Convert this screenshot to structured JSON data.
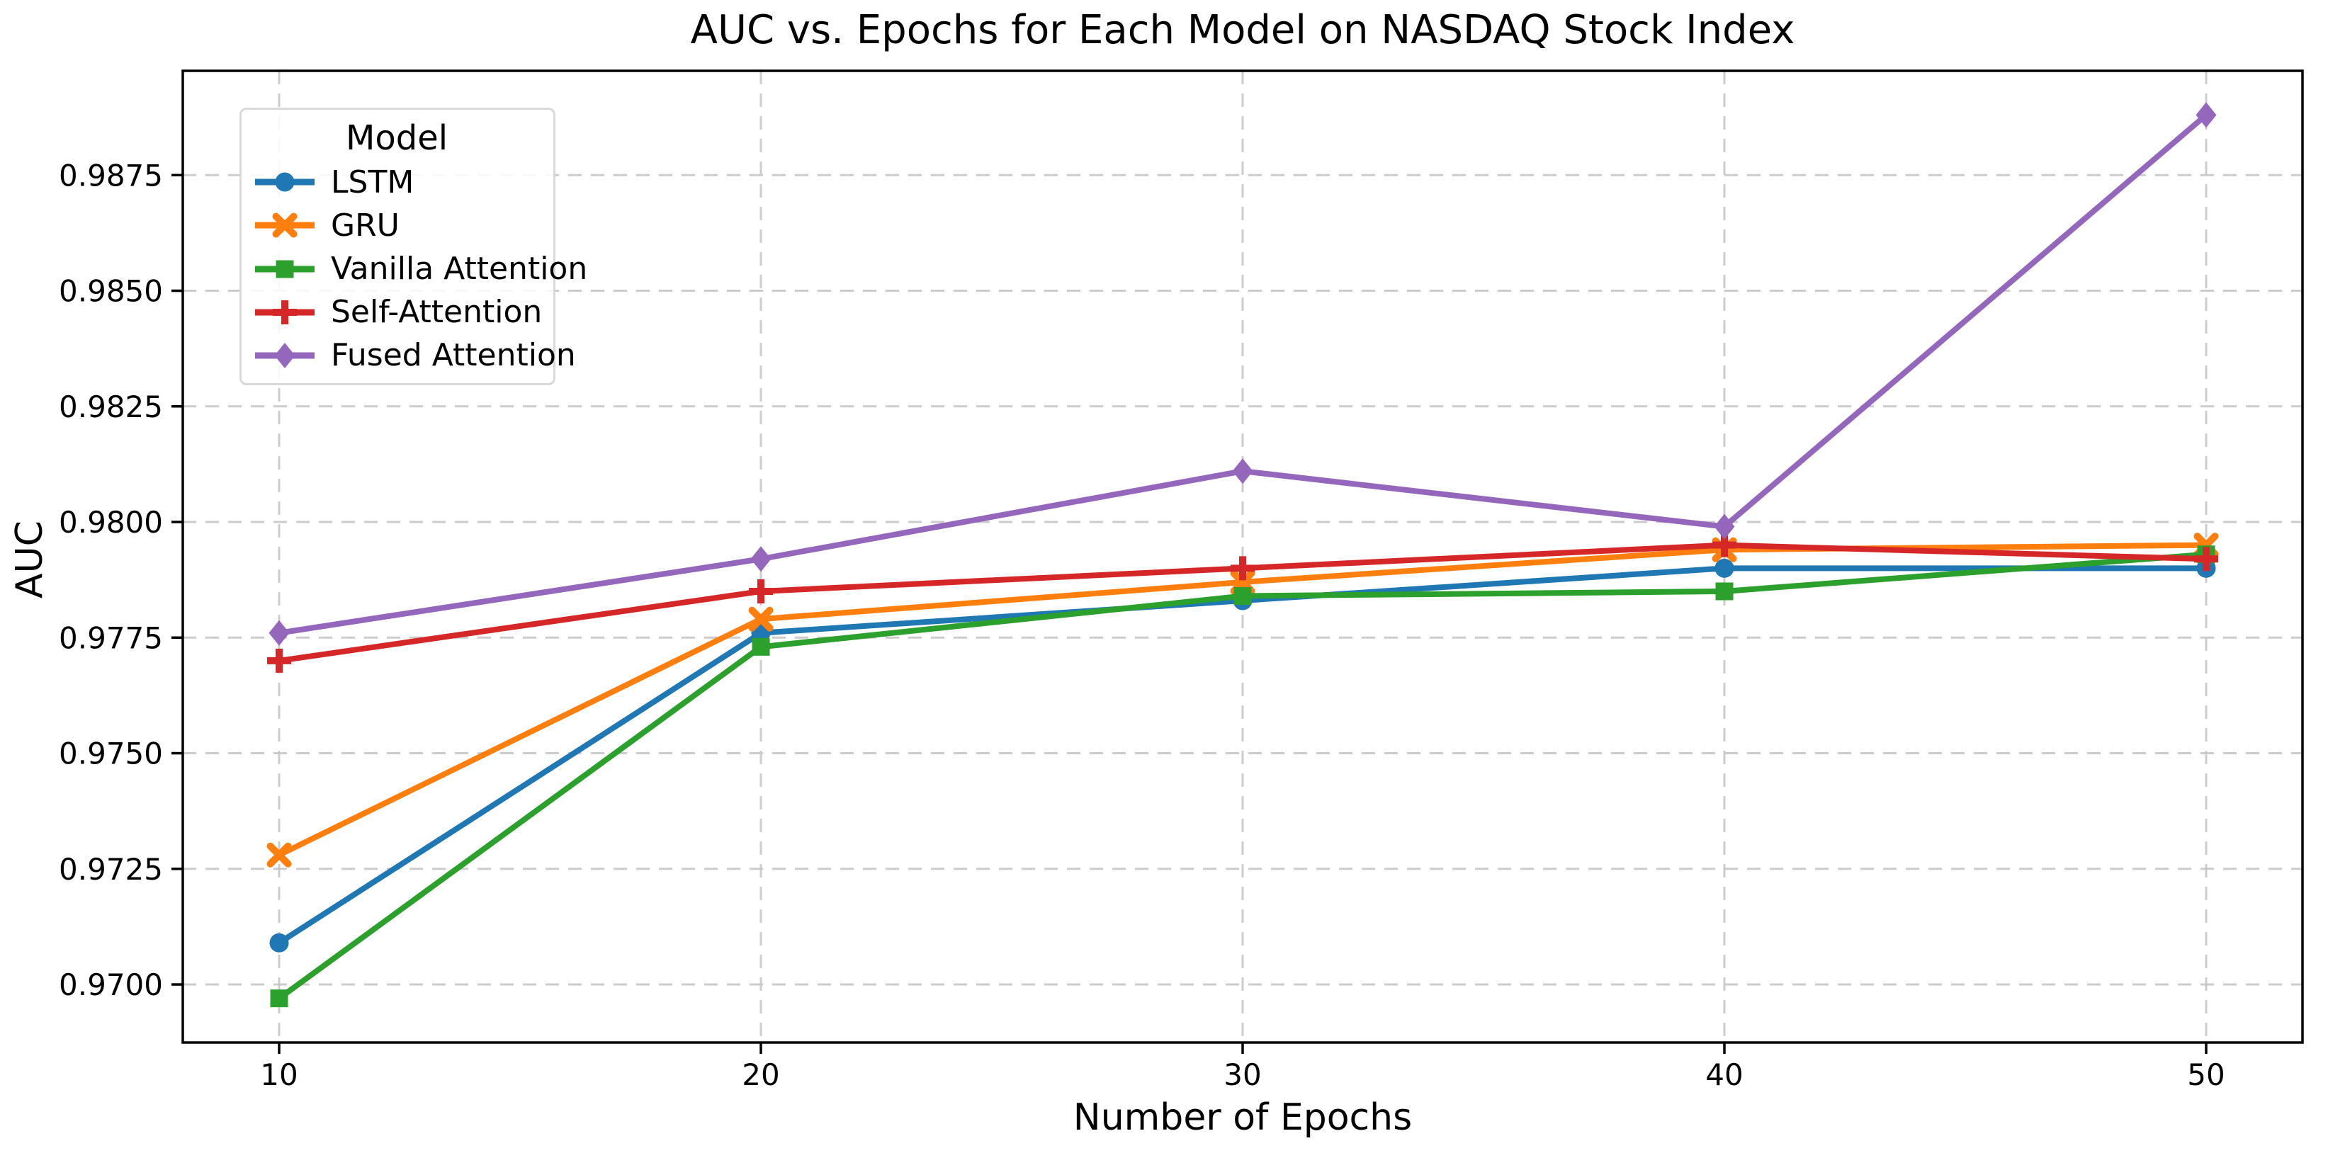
{
  "chart_data": {
    "type": "line",
    "title": "AUC vs. Epochs for Each Model on NASDAQ Stock Index",
    "xlabel": "Number of Epochs",
    "ylabel": "AUC",
    "x": [
      10,
      20,
      30,
      40,
      50
    ],
    "xtick_labels": [
      "10",
      "20",
      "30",
      "40",
      "50"
    ],
    "ytick_values": [
      0.97,
      0.9725,
      0.975,
      0.9775,
      0.98,
      0.9825,
      0.985,
      0.9875
    ],
    "ytick_labels": [
      "0.9700",
      "0.9725",
      "0.9750",
      "0.9775",
      "0.9800",
      "0.9825",
      "0.9850",
      "0.9875"
    ],
    "xlim": [
      8,
      52
    ],
    "ylim": [
      0.968745,
      0.989755
    ],
    "grid": true,
    "grid_style": "dashed",
    "grid_color": "#c7c7c7",
    "legend": {
      "title": "Model",
      "position": "upper-left"
    },
    "series": [
      {
        "name": "LSTM",
        "color": "#1f77b4",
        "marker": "circle",
        "values": [
          0.9709,
          0.9776,
          0.9783,
          0.979,
          0.979
        ]
      },
      {
        "name": "GRU",
        "color": "#ff7f0e",
        "marker": "x",
        "values": [
          0.9728,
          0.9779,
          0.9787,
          0.9794,
          0.9795
        ]
      },
      {
        "name": "Vanilla Attention",
        "color": "#2ca02c",
        "marker": "square",
        "values": [
          0.9697,
          0.9773,
          0.9784,
          0.9785,
          0.9793
        ]
      },
      {
        "name": "Self-Attention",
        "color": "#d62728",
        "marker": "plus",
        "values": [
          0.977,
          0.9785,
          0.979,
          0.9795,
          0.9792
        ]
      },
      {
        "name": "Fused Attention",
        "color": "#9467bd",
        "marker": "diamond",
        "values": [
          0.9776,
          0.9792,
          0.9811,
          0.9799,
          0.9888
        ]
      }
    ]
  }
}
